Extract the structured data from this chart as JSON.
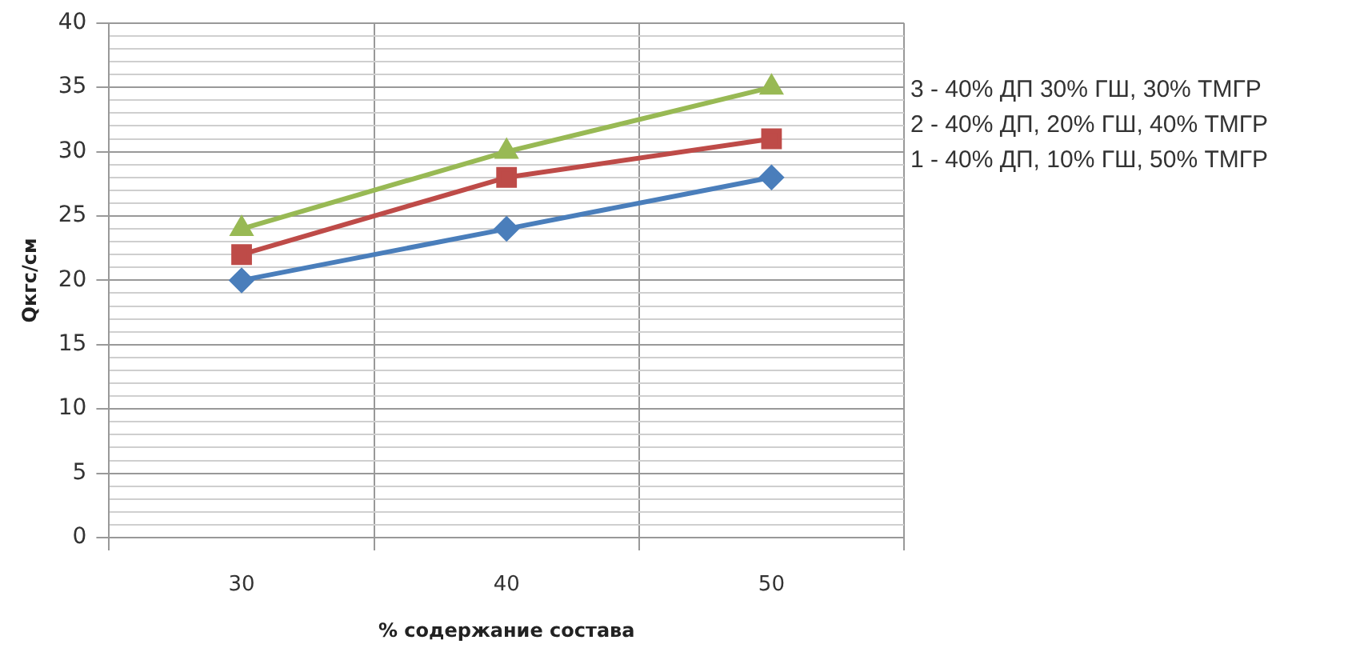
{
  "chart_data": {
    "type": "line",
    "xlabel": "% содержание состава",
    "ylabel": "Qкгс/см",
    "categories": [
      "30",
      "40",
      "50"
    ],
    "series": [
      {
        "name": "1 - 40% ДП, 10% ГШ, 50% ТМГР",
        "color": "#4a7ebb",
        "marker": "diamond",
        "values": [
          20,
          24,
          28
        ]
      },
      {
        "name": "2 - 40% ДП, 20% ГШ, 40% ТМГР",
        "color": "#be4b48",
        "marker": "square",
        "values": [
          22,
          28,
          31
        ]
      },
      {
        "name": "3 - 40% ДП 30% ГШ, 30% ТМГР",
        "color": "#98b954",
        "marker": "triangle",
        "values": [
          24,
          30,
          35
        ]
      }
    ],
    "ylim": [
      0,
      40
    ],
    "yticks": [
      0,
      {
        "value": 1,
        "label": null
      },
      {
        "value": 2,
        "label": null
      },
      {
        "value": 3,
        "label": null
      },
      {
        "value": 4,
        "label": null
      },
      5,
      {
        "value": 6,
        "label": null
      },
      {
        "value": 7,
        "label": null
      },
      {
        "value": 8,
        "label": null
      },
      {
        "value": 9,
        "label": null
      },
      10,
      {
        "value": 11,
        "label": null
      },
      {
        "value": 12,
        "label": null
      },
      {
        "value": 13,
        "label": null
      },
      {
        "value": 14,
        "label": null
      },
      15,
      {
        "value": 16,
        "label": null
      },
      {
        "value": 17,
        "label": null
      },
      {
        "value": 18,
        "label": null
      },
      {
        "value": 19,
        "label": null
      },
      20,
      {
        "value": 21,
        "label": null
      },
      {
        "value": 22,
        "label": null
      },
      {
        "value": 23,
        "label": null
      },
      {
        "value": 24,
        "label": null
      },
      25,
      {
        "value": 26,
        "label": null
      },
      {
        "value": 27,
        "label": null
      },
      {
        "value": 28,
        "label": null
      },
      {
        "value": 29,
        "label": null
      },
      30,
      {
        "value": 31,
        "label": null
      },
      {
        "value": 32,
        "label": null
      },
      {
        "value": 33,
        "label": null
      },
      {
        "value": 34,
        "label": null
      },
      35,
      {
        "value": 36,
        "label": null
      },
      {
        "value": 37,
        "label": null
      },
      {
        "value": 38,
        "label": null
      },
      {
        "value": 39,
        "label": null
      },
      40
    ],
    "grid": true,
    "legend": "right",
    "line_style": "solid"
  }
}
